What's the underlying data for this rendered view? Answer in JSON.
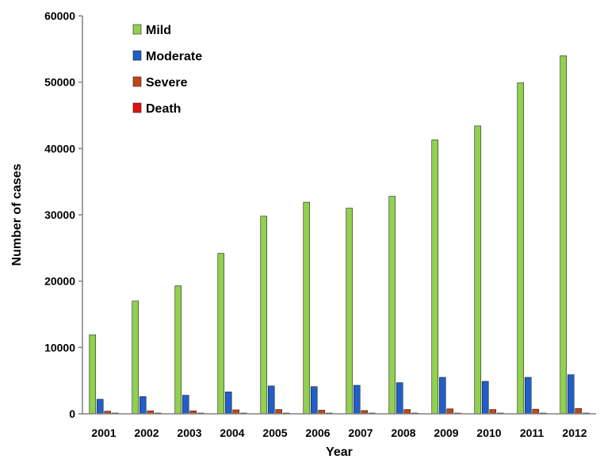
{
  "chart_data": {
    "type": "bar",
    "title": "",
    "xlabel": "Year",
    "ylabel": "Number of cases",
    "ylim": [
      0,
      60000
    ],
    "yticks": [
      0,
      10000,
      20000,
      30000,
      40000,
      50000,
      60000
    ],
    "grid": false,
    "legend_position": "top-left",
    "categories": [
      "2001",
      "2002",
      "2003",
      "2004",
      "2005",
      "2006",
      "2007",
      "2008",
      "2009",
      "2010",
      "2011",
      "2012"
    ],
    "series": [
      {
        "name": "Mild",
        "color": "#92D050",
        "values": [
          11900,
          17000,
          19300,
          24200,
          29800,
          31900,
          31000,
          32800,
          41300,
          43400,
          49900,
          54000
        ]
      },
      {
        "name": "Moderate",
        "color": "#1F5FC8",
        "values": [
          2200,
          2600,
          2800,
          3300,
          4200,
          4100,
          4300,
          4700,
          5500,
          4900,
          5500,
          5900
        ]
      },
      {
        "name": "Severe",
        "color": "#C0461B",
        "values": [
          400,
          450,
          450,
          600,
          650,
          550,
          500,
          650,
          750,
          650,
          700,
          800
        ]
      },
      {
        "name": "Death",
        "color": "#E01010",
        "values": [
          30,
          40,
          40,
          40,
          40,
          40,
          30,
          30,
          40,
          30,
          30,
          40
        ]
      }
    ]
  }
}
